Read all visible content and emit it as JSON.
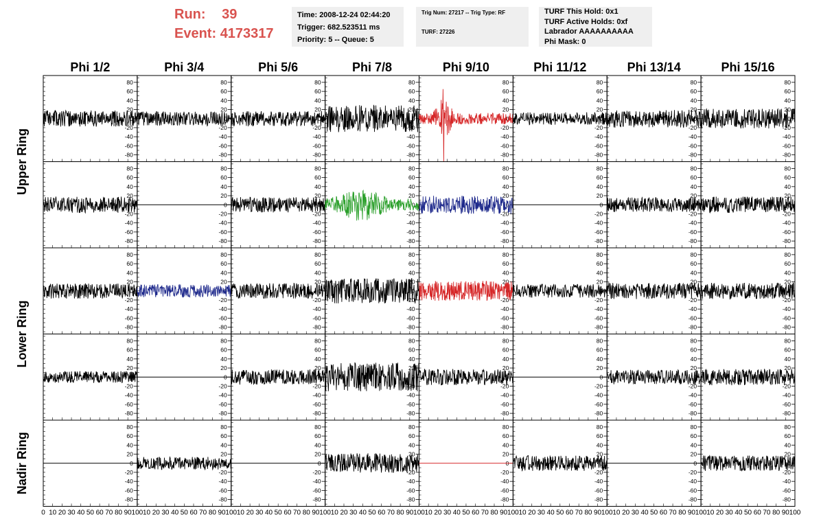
{
  "header": {
    "run_label": "Run:",
    "run_value": "39",
    "event_label": "Event:",
    "event_value": "4173317",
    "accent_color": "#d9534f"
  },
  "info_time": {
    "time": "Time: 2008-12-24 02:44:20",
    "trigger": "Trigger: 682.523511 ms",
    "priority": "Priority: 5 -- Queue: 5"
  },
  "info_trig": {
    "trig": "Trig Num: 27217 -- Trig Type: RF",
    "turf": "TURF: 27226"
  },
  "info_turf": {
    "hold": "TURF This Hold: 0x1",
    "active": "TURF Active Holds: 0xf",
    "labrador": "Labrador AAAAAAAAAA",
    "mask": "Phi Mask: 0"
  },
  "chart_data": {
    "type": "line",
    "title": "",
    "column_headers": [
      "Phi 1/2",
      "Phi 3/4",
      "Phi 5/6",
      "Phi 7/8",
      "Phi 9/10",
      "Phi 11/12",
      "Phi 13/14",
      "Phi 15/16"
    ],
    "ring_labels": [
      "Upper Ring",
      "Lower Ring",
      "Nadir Ring"
    ],
    "y_ticks": [
      80,
      60,
      40,
      20,
      0,
      -20,
      -40,
      -60,
      -80
    ],
    "x_ticks": [
      0,
      10,
      20,
      30,
      40,
      50,
      60,
      70,
      80,
      90,
      100
    ],
    "ylim": [
      -95,
      95
    ],
    "xlim": [
      0,
      100
    ],
    "colors": {
      "default": "#000000",
      "red": "#d62728",
      "blue": "#1f2a8c",
      "green": "#2ca02c"
    },
    "grid": false,
    "rows": [
      [
        {
          "color": "default",
          "amp": 18,
          "seed": 11,
          "flat": false
        },
        {
          "color": "default",
          "amp": 16,
          "seed": 12,
          "flat": false
        },
        {
          "color": "default",
          "amp": 17,
          "seed": 13,
          "flat": false
        },
        {
          "color": "default",
          "amp": 30,
          "seed": 14,
          "flat": false
        },
        {
          "color": "red",
          "amp": 28,
          "seed": 15,
          "flat": false,
          "spike": true
        },
        {
          "color": "default",
          "amp": 14,
          "seed": 16,
          "flat": false
        },
        {
          "color": "default",
          "amp": 20,
          "seed": 17,
          "flat": false
        },
        {
          "color": "default",
          "amp": 22,
          "seed": 18,
          "flat": false
        }
      ],
      [
        {
          "color": "default",
          "amp": 18,
          "seed": 21,
          "flat": false
        },
        {
          "color": "default",
          "amp": 0,
          "seed": 22,
          "flat": true
        },
        {
          "color": "default",
          "amp": 17,
          "seed": 23,
          "flat": false
        },
        {
          "color": "green",
          "amp": 30,
          "seed": 24,
          "flat": false,
          "burst": true
        },
        {
          "color": "blue",
          "amp": 20,
          "seed": 25,
          "flat": false
        },
        {
          "color": "default",
          "amp": 0,
          "seed": 26,
          "flat": true
        },
        {
          "color": "default",
          "amp": 16,
          "seed": 27,
          "flat": false
        },
        {
          "color": "default",
          "amp": 18,
          "seed": 28,
          "flat": false
        }
      ],
      [
        {
          "color": "default",
          "amp": 17,
          "seed": 31,
          "flat": false
        },
        {
          "color": "blue",
          "amp": 14,
          "seed": 32,
          "flat": false
        },
        {
          "color": "default",
          "amp": 17,
          "seed": 33,
          "flat": false
        },
        {
          "color": "default",
          "amp": 28,
          "seed": 34,
          "flat": false
        },
        {
          "color": "red",
          "amp": 22,
          "seed": 35,
          "flat": false
        },
        {
          "color": "default",
          "amp": 15,
          "seed": 36,
          "flat": false
        },
        {
          "color": "default",
          "amp": 18,
          "seed": 37,
          "flat": false
        },
        {
          "color": "default",
          "amp": 18,
          "seed": 38,
          "flat": false
        }
      ],
      [
        {
          "color": "default",
          "amp": 13,
          "seed": 41,
          "flat": false
        },
        {
          "color": "default",
          "amp": 0,
          "seed": 42,
          "flat": true
        },
        {
          "color": "default",
          "amp": 17,
          "seed": 43,
          "flat": false
        },
        {
          "color": "default",
          "amp": 32,
          "seed": 44,
          "flat": false
        },
        {
          "color": "default",
          "amp": 18,
          "seed": 45,
          "flat": false
        },
        {
          "color": "default",
          "amp": 0,
          "seed": 46,
          "flat": true
        },
        {
          "color": "default",
          "amp": 16,
          "seed": 47,
          "flat": false
        },
        {
          "color": "default",
          "amp": 18,
          "seed": 48,
          "flat": false
        }
      ],
      [
        {
          "color": "default",
          "amp": 0,
          "seed": 51,
          "flat": true
        },
        {
          "color": "default",
          "amp": 14,
          "seed": 52,
          "flat": false
        },
        {
          "color": "default",
          "amp": 0,
          "seed": 53,
          "flat": true
        },
        {
          "color": "default",
          "amp": 22,
          "seed": 54,
          "flat": false
        },
        {
          "color": "red",
          "amp": 0,
          "seed": 55,
          "flat": true
        },
        {
          "color": "default",
          "amp": 17,
          "seed": 56,
          "flat": false
        },
        {
          "color": "default",
          "amp": 0,
          "seed": 57,
          "flat": true
        },
        {
          "color": "default",
          "amp": 17,
          "seed": 58,
          "flat": false
        }
      ]
    ]
  }
}
